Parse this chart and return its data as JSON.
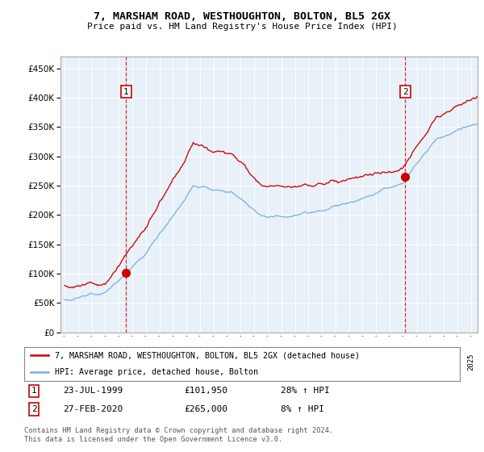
{
  "title": "7, MARSHAM ROAD, WESTHOUGHTON, BOLTON, BL5 2GX",
  "subtitle": "Price paid vs. HM Land Registry's House Price Index (HPI)",
  "legend_line1": "7, MARSHAM ROAD, WESTHOUGHTON, BOLTON, BL5 2GX (detached house)",
  "legend_line2": "HPI: Average price, detached house, Bolton",
  "footnote": "Contains HM Land Registry data © Crown copyright and database right 2024.\nThis data is licensed under the Open Government Licence v3.0.",
  "marker1_date": "23-JUL-1999",
  "marker1_price": "£101,950",
  "marker1_hpi": "28% ↑ HPI",
  "marker2_date": "27-FEB-2020",
  "marker2_price": "£265,000",
  "marker2_hpi": "8% ↑ HPI",
  "sale1_x": 1999.55,
  "sale1_y": 101950,
  "sale2_x": 2020.15,
  "sale2_y": 265000,
  "red_color": "#cc0000",
  "blue_color": "#7aade0",
  "plot_bg": "#e8f0f8",
  "ylim_min": 0,
  "ylim_max": 470000,
  "xlim_min": 1994.7,
  "xlim_max": 2025.5,
  "yticks": [
    0,
    50000,
    100000,
    150000,
    200000,
    250000,
    300000,
    350000,
    400000,
    450000
  ],
  "xticks": [
    1995,
    1996,
    1997,
    1998,
    1999,
    2000,
    2001,
    2002,
    2003,
    2004,
    2005,
    2006,
    2007,
    2008,
    2009,
    2010,
    2011,
    2012,
    2013,
    2014,
    2015,
    2016,
    2017,
    2018,
    2019,
    2020,
    2021,
    2022,
    2023,
    2024,
    2025
  ]
}
